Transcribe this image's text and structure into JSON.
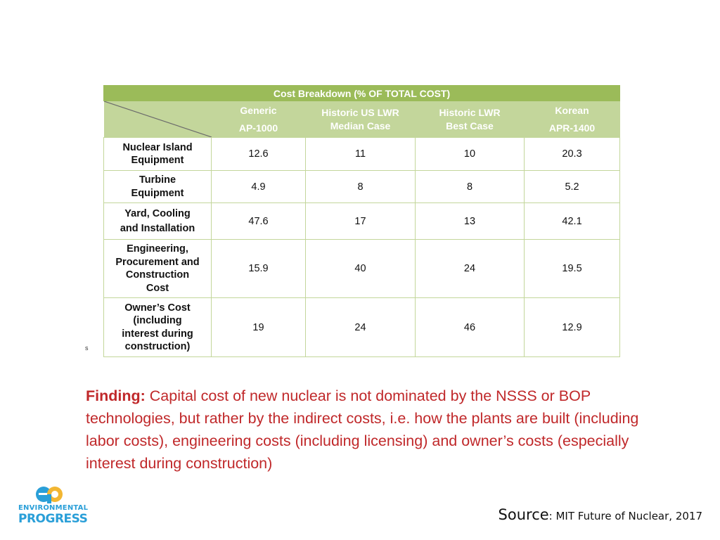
{
  "table": {
    "title": "Cost Breakdown (% OF TOTAL COST)",
    "columns": [
      {
        "line1": "Generic",
        "line2": "AP-1000"
      },
      {
        "line1": "Historic US LWR",
        "line2": "Median Case"
      },
      {
        "line1": "Historic LWR",
        "line2": "Best Case"
      },
      {
        "line1": "Korean",
        "line2": "APR-1400"
      }
    ],
    "rows": [
      {
        "lines": [
          "Nuclear Island",
          "Equipment"
        ],
        "values": [
          "12.6",
          "11",
          "10",
          "20.3"
        ]
      },
      {
        "lines": [
          "Turbine",
          "Equipment"
        ],
        "values": [
          "4.9",
          "8",
          "8",
          "5.2"
        ]
      },
      {
        "lines": [
          "Yard, Cooling",
          "and Installation"
        ],
        "values": [
          "47.6",
          "17",
          "13",
          "42.1"
        ]
      },
      {
        "lines": [
          "Engineering,",
          "Procurement and",
          "Construction",
          "Cost"
        ],
        "values": [
          "15.9",
          "40",
          "24",
          "19.5"
        ]
      },
      {
        "lines": [
          "Owner’s Cost",
          "(including",
          "interest during",
          "construction)"
        ],
        "values": [
          "19",
          "24",
          "46",
          "12.9"
        ]
      }
    ]
  },
  "finding": {
    "label": "Finding:",
    "text": "Capital cost of new nuclear is not dominated by the NSSS or BOP technologies, but rather by the indirect costs, i.e. how the plants are built (including labor costs), engineering costs (including licensing) and owner’s costs (especially interest during construction)"
  },
  "logo": {
    "line1": "ENVIRONMENTAL",
    "line2": "PROGRESS",
    "icon": "ep-logo-icon",
    "color": "#2a9fd8",
    "accent": "#f2b632"
  },
  "source": {
    "label": "Source",
    "text": ": MIT Future of Nuclear, 2017"
  },
  "stray_mark": "s",
  "colors": {
    "title_bar": "#9bbb59",
    "header_bg": "#c3d69b",
    "finding_text": "#c0282a"
  }
}
